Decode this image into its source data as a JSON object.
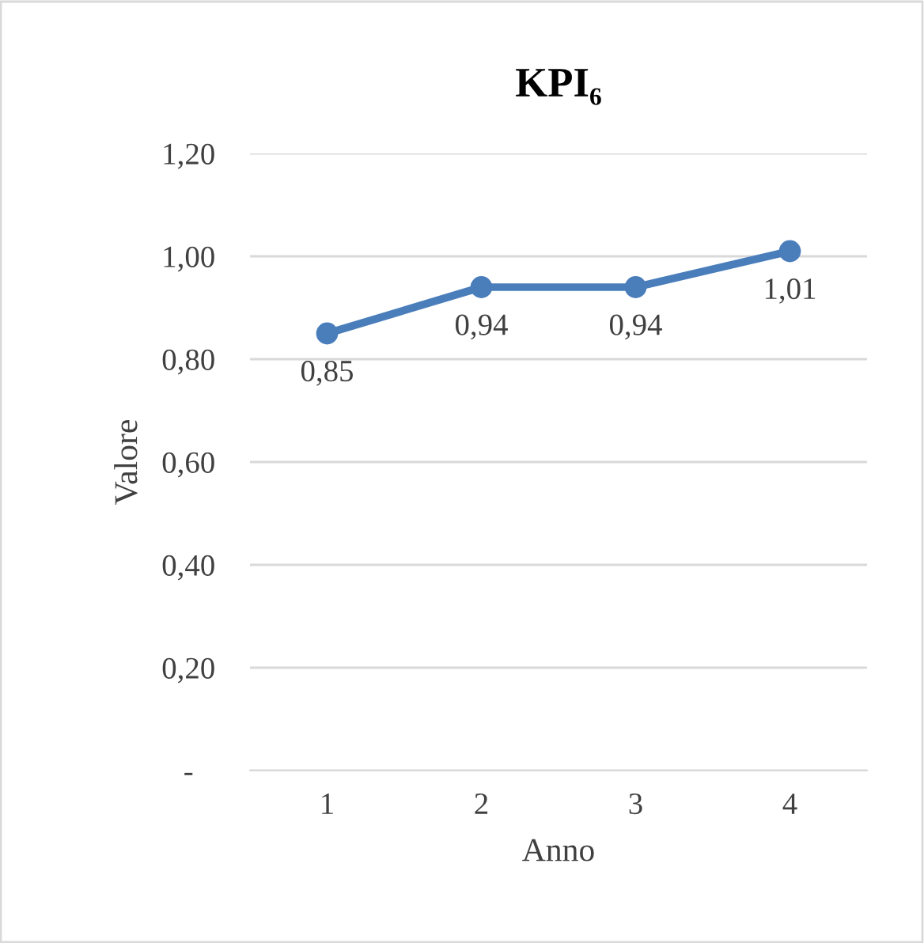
{
  "chart_data": {
    "type": "line",
    "title": "KPI₆",
    "xlabel": "Anno",
    "ylabel": "Valore",
    "categories": [
      "1",
      "2",
      "3",
      "4"
    ],
    "series": [
      {
        "color": "#4a7ebb",
        "values": [
          0.85,
          0.94,
          0.94,
          1.01
        ],
        "value_labels": [
          "0,85",
          "0,94",
          "0,94",
          "1,01"
        ]
      }
    ],
    "ylim": [
      0,
      1.2
    ],
    "yticks": [
      {
        "value": 0,
        "label": "-"
      },
      {
        "value": 0.2,
        "label": "0,20"
      },
      {
        "value": 0.4,
        "label": "0,40"
      },
      {
        "value": 0.6,
        "label": "0,60"
      },
      {
        "value": 0.8,
        "label": "0,80"
      },
      {
        "value": 1.0,
        "label": "1,00"
      },
      {
        "value": 1.2,
        "label": "1,20"
      }
    ],
    "grid": "y",
    "marker": "circle",
    "line_style": "solid",
    "legend": false
  }
}
